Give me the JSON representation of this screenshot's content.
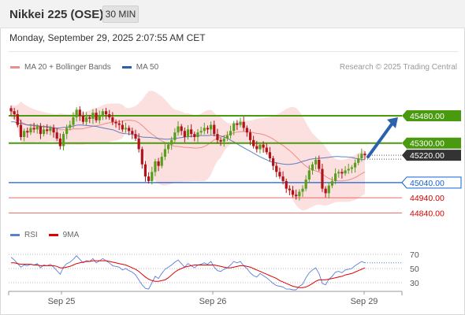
{
  "header": {
    "title": "Nikkei 225 (OSE)",
    "timeframe": "30 MIN",
    "datetime": "Monday, September 29, 2025 2:07:55 AM CET"
  },
  "legend": {
    "ma20_label": "MA 20 + Bollinger Bands",
    "ma50_label": "MA 50",
    "copyright": "Research © 2025 Trading Central",
    "rsi_label": "RSI",
    "rsi_ma_label": "9MA"
  },
  "colors": {
    "up": "#5a9e1e",
    "down": "#b01217",
    "resistance": "#4a9a10",
    "support": "#1560d0",
    "support2": "#e86a6a",
    "ma20": "#f28b8b",
    "ma50": "#2a5fb0",
    "band": "#fbd4d4",
    "arrow": "#2a62ad",
    "rsi": "#5b7fd8",
    "rsi_ma": "#e00000"
  },
  "chart_data": [
    {
      "type": "candlestick",
      "title": "Nikkei 225 (OSE) 30 MIN",
      "x_ticks": [
        "Sep 25",
        "Sep 26",
        "Sep 29"
      ],
      "ylim": [
        44780,
        45620
      ],
      "current_price": 45220.0,
      "levels": [
        {
          "value": 45480.0,
          "label": "45480.00",
          "kind": "resistance"
        },
        {
          "value": 45300.0,
          "label": "45300.00",
          "kind": "resistance"
        },
        {
          "value": 45220.0,
          "label": "45220.00",
          "kind": "current"
        },
        {
          "value": 45040.0,
          "label": "45040.00",
          "kind": "support"
        },
        {
          "value": 44940.0,
          "label": "44940.00",
          "kind": "support2"
        },
        {
          "value": 44840.0,
          "label": "44840.00",
          "kind": "support2"
        }
      ],
      "arrow": {
        "from": 45210,
        "to": 45470
      },
      "closes": [
        45510,
        45490,
        45420,
        45340,
        45380,
        45370,
        45400,
        45390,
        45410,
        45360,
        45390,
        45380,
        45400,
        45370,
        45330,
        45280,
        45360,
        45400,
        45420,
        45470,
        45520,
        45480,
        45440,
        45470,
        45460,
        45500,
        45450,
        45480,
        45510,
        45490,
        45470,
        45440,
        45430,
        45420,
        45390,
        45400,
        45380,
        45360,
        45330,
        45260,
        45160,
        45080,
        45050,
        45110,
        45180,
        45150,
        45210,
        45260,
        45290,
        45320,
        45370,
        45410,
        45380,
        45340,
        45390,
        45360,
        45340,
        45370,
        45380,
        45400,
        45390,
        45420,
        45360,
        45320,
        45310,
        45330,
        45350,
        45380,
        45430,
        45420,
        45440,
        45400,
        45370,
        45320,
        45280,
        45260,
        45290,
        45270,
        45240,
        45200,
        45150,
        45110,
        45080,
        45050,
        45000,
        44990,
        44960,
        44950,
        44980,
        45000,
        45060,
        45120,
        45160,
        45190,
        45130,
        45000,
        44970,
        45020,
        45050,
        45100,
        45110,
        45100,
        45120,
        45130,
        45140,
        45170,
        45200,
        45230,
        45220
      ],
      "ma50": [
        45440,
        45440,
        45430,
        45430,
        45425,
        45420,
        45420,
        45418,
        45415,
        45412,
        45410,
        45408,
        45405,
        45400,
        45398,
        45400,
        45403,
        45405,
        45408,
        45412,
        45418,
        45420,
        45418,
        45416,
        45414,
        45412,
        45410,
        45405,
        45400,
        45396,
        45392,
        45388,
        45380,
        45370,
        45365,
        45362,
        45360,
        45358,
        45352,
        45345,
        45340,
        45338,
        45338,
        45336,
        45334,
        45330,
        45328,
        45326,
        45326,
        45328,
        45330,
        45333,
        45336,
        45340,
        45342,
        45344,
        45346,
        45348,
        45350,
        45350,
        45350,
        45352,
        45352,
        45350,
        45346,
        45340,
        45332,
        45320,
        45308,
        45295,
        45282,
        45270,
        45258,
        45246,
        45234,
        45222,
        45210,
        45200,
        45190,
        45180,
        45174,
        45170,
        45166,
        45162,
        45160,
        45160,
        45162,
        45166,
        45172,
        45180,
        45185,
        45192,
        45196,
        45198,
        45200,
        45202,
        45204,
        45206,
        45210,
        45212,
        45212,
        45210,
        45210,
        45208,
        45206,
        45200,
        45196,
        45192,
        45190
      ],
      "rsi": {
        "ylim": [
          20,
          80
        ],
        "ticks": [
          70,
          50,
          30
        ],
        "rsi": [
          66,
          62,
          57,
          52,
          55,
          54,
          56,
          55,
          57,
          51,
          55,
          54,
          56,
          52,
          47,
          42,
          52,
          57,
          59,
          63,
          68,
          63,
          58,
          61,
          60,
          64,
          58,
          61,
          64,
          61,
          58,
          54,
          53,
          52,
          48,
          50,
          47,
          45,
          41,
          34,
          27,
          22,
          21,
          30,
          39,
          36,
          43,
          49,
          52,
          55,
          59,
          62,
          57,
          52,
          57,
          54,
          51,
          55,
          56,
          58,
          56,
          60,
          52,
          47,
          46,
          49,
          51,
          55,
          60,
          58,
          60,
          54,
          50,
          44,
          40,
          38,
          43,
          40,
          37,
          33,
          29,
          26,
          25,
          24,
          21,
          21,
          20,
          20,
          25,
          28,
          37,
          44,
          48,
          51,
          43,
          29,
          27,
          35,
          39,
          45,
          46,
          44,
          48,
          49,
          50,
          54,
          57,
          60,
          58
        ],
        "ma9": [
          58,
          58,
          57,
          56,
          56,
          56,
          56,
          55,
          55,
          54,
          54,
          54,
          54,
          54,
          53,
          51,
          51,
          52,
          53,
          55,
          57,
          58,
          59,
          60,
          60,
          61,
          61,
          61,
          61,
          61,
          60,
          59,
          58,
          57,
          56,
          55,
          53,
          51,
          49,
          46,
          42,
          38,
          35,
          33,
          32,
          32,
          33,
          34,
          37,
          41,
          45,
          48,
          50,
          52,
          53,
          54,
          55,
          55,
          55,
          55,
          55,
          55,
          55,
          54,
          53,
          52,
          51,
          51,
          52,
          53,
          54,
          54,
          53,
          52,
          50,
          48,
          46,
          44,
          42,
          40,
          38,
          36,
          33,
          31,
          29,
          27,
          25,
          24,
          23,
          23,
          24,
          26,
          29,
          32,
          34,
          34,
          34,
          35,
          36,
          37,
          38,
          39,
          41,
          42,
          43,
          45,
          47,
          49,
          51
        ]
      }
    }
  ]
}
